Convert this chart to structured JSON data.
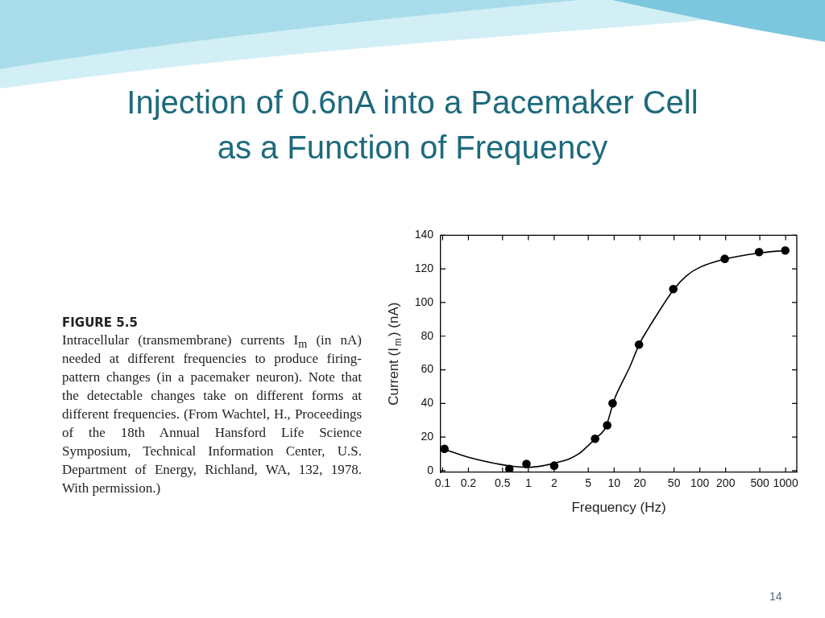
{
  "chart_data": {
    "type": "scatter",
    "title": "Injection of 0.6nA into a Pacemaker Cell as a Function of Frequency",
    "xlabel": "Frequency (Hz)",
    "ylabel": "Current (I$_{m}$) (nA)",
    "annotations": [
      "FIGURE 5.5",
      "Intracellular (transmembrane) currents I$_{m}$ (in nA) needed at different frequencies to produce firing-pattern changes (in a pacemaker neuron). Note that the detectable changes take on different forms at different frequencies. (From Wachtel, H., Proceedings of the 18th Annual Hansford Life Science Symposium, Technical Information Center, U.S. Department of Energy, Richland, WA, 132, 1978. With permission.)",
      "14"
    ],
    "log": "x",
    "xlim": [
      0.095,
      1350
    ],
    "xticks": [
      0.1,
      0.2,
      0.5,
      1,
      2,
      5,
      10,
      20,
      50,
      100,
      200,
      500,
      1000
    ],
    "ylim": [
      -1,
      140
    ],
    "yticks": [
      0,
      20,
      40,
      60,
      80,
      100,
      120,
      140
    ],
    "marker": "circle",
    "line_style": "solid",
    "series": [
      {
        "color": "#000000",
        "x": [
          0.105,
          0.6,
          0.95,
          2,
          6,
          8.3,
          9.6,
          19.5,
          49,
          195,
          490,
          990
        ],
        "values": [
          13,
          1,
          4,
          3,
          19,
          27,
          40,
          75,
          108,
          126,
          130,
          131
        ]
      },
      {
        "type": "line",
        "color": "#000000",
        "marker": "none",
        "x": [
          0.1,
          0.2,
          0.5,
          0.7,
          1,
          1.5,
          2,
          3,
          4,
          5,
          6,
          8,
          10,
          12,
          15,
          20,
          25,
          30,
          50,
          70,
          100,
          200,
          500,
          1000
        ],
        "values": [
          13,
          8,
          3.5,
          2.5,
          2,
          3,
          4.5,
          7,
          10.5,
          15,
          19,
          26,
          42,
          51,
          61,
          76,
          84.5,
          91,
          108,
          116,
          121,
          126,
          129.5,
          131
        ]
      }
    ]
  }
}
